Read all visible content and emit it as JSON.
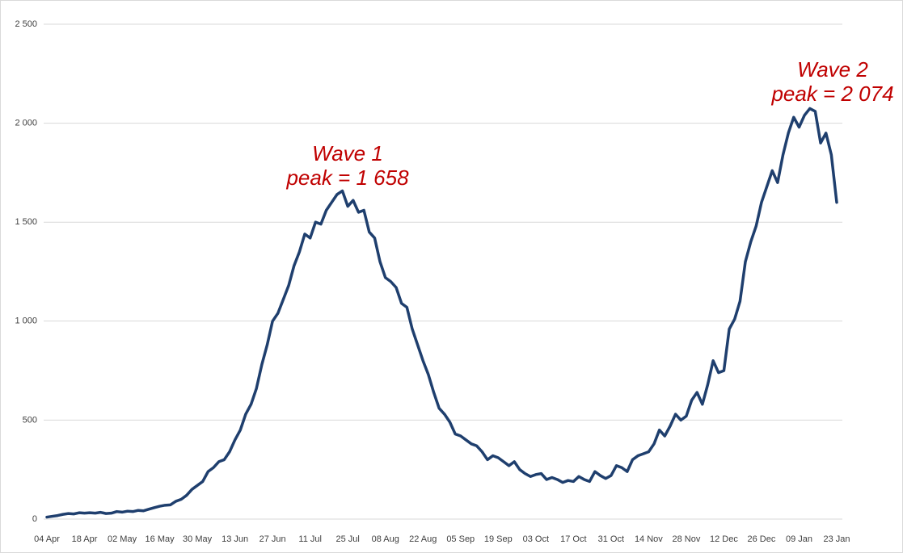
{
  "chart_data": {
    "type": "line",
    "categories": [
      "04 Apr",
      null,
      null,
      null,
      null,
      null,
      null,
      "18 Apr",
      null,
      null,
      null,
      null,
      null,
      null,
      "02 May",
      null,
      null,
      null,
      null,
      null,
      null,
      "16 May",
      null,
      null,
      null,
      null,
      null,
      null,
      "30 May",
      null,
      null,
      null,
      null,
      null,
      null,
      "13 Jun",
      null,
      null,
      null,
      null,
      null,
      null,
      "27 Jun",
      null,
      null,
      null,
      null,
      null,
      null,
      "11 Jul",
      null,
      null,
      null,
      null,
      null,
      null,
      "25 Jul",
      null,
      null,
      null,
      null,
      null,
      null,
      "08 Aug",
      null,
      null,
      null,
      null,
      null,
      null,
      "22 Aug",
      null,
      null,
      null,
      null,
      null,
      null,
      "05 Sep",
      null,
      null,
      null,
      null,
      null,
      null,
      "19 Sep",
      null,
      null,
      null,
      null,
      null,
      null,
      "03 Oct",
      null,
      null,
      null,
      null,
      null,
      null,
      "17 Oct",
      null,
      null,
      null,
      null,
      null,
      null,
      "31 Oct",
      null,
      null,
      null,
      null,
      null,
      null,
      "14 Nov",
      null,
      null,
      null,
      null,
      null,
      null,
      "28 Nov",
      null,
      null,
      null,
      null,
      null,
      null,
      "12 Dec",
      null,
      null,
      null,
      null,
      null,
      null,
      "26 Dec",
      null,
      null,
      null,
      null,
      null,
      null,
      "09 Jan",
      null,
      null,
      null,
      null,
      null,
      null,
      "23 Jan"
    ],
    "values": [
      10,
      14,
      18,
      24,
      28,
      26,
      32,
      30,
      32,
      30,
      34,
      28,
      30,
      38,
      35,
      40,
      38,
      44,
      42,
      50,
      58,
      65,
      70,
      72,
      90,
      100,
      120,
      150,
      170,
      190,
      240,
      260,
      290,
      300,
      340,
      400,
      450,
      530,
      580,
      660,
      780,
      880,
      1000,
      1040,
      1110,
      1180,
      1280,
      1350,
      1440,
      1420,
      1500,
      1490,
      1560,
      1600,
      1640,
      1658,
      1580,
      1610,
      1550,
      1560,
      1450,
      1420,
      1300,
      1220,
      1200,
      1170,
      1090,
      1070,
      960,
      880,
      800,
      730,
      640,
      560,
      530,
      490,
      430,
      420,
      400,
      380,
      370,
      340,
      300,
      320,
      310,
      290,
      270,
      290,
      250,
      230,
      215,
      225,
      230,
      200,
      210,
      200,
      185,
      195,
      190,
      215,
      200,
      190,
      240,
      220,
      205,
      220,
      270,
      260,
      240,
      300,
      320,
      330,
      340,
      380,
      450,
      420,
      470,
      530,
      500,
      520,
      600,
      640,
      580,
      680,
      800,
      740,
      750,
      960,
      1010,
      1100,
      1300,
      1400,
      1480,
      1600,
      1680,
      1760,
      1700,
      1840,
      1950,
      2030,
      1980,
      2040,
      2074,
      2060,
      1900,
      1950,
      1840,
      1600
    ],
    "color": "#1f3f6e",
    "ylim": [
      0,
      2500
    ],
    "yticks": [
      0,
      500,
      {
        "value": 1000,
        "label": "1 000"
      },
      {
        "value": 1500,
        "label": "1 500"
      },
      {
        "value": 2000,
        "label": "2 000"
      },
      {
        "value": 2500,
        "label": "2 500"
      }
    ],
    "grid": true,
    "annotations": [
      {
        "lines": [
          "Wave 1",
          "peak = 1 658"
        ]
      },
      {
        "lines": [
          "Wave 2",
          "peak = 2 074"
        ]
      }
    ]
  }
}
